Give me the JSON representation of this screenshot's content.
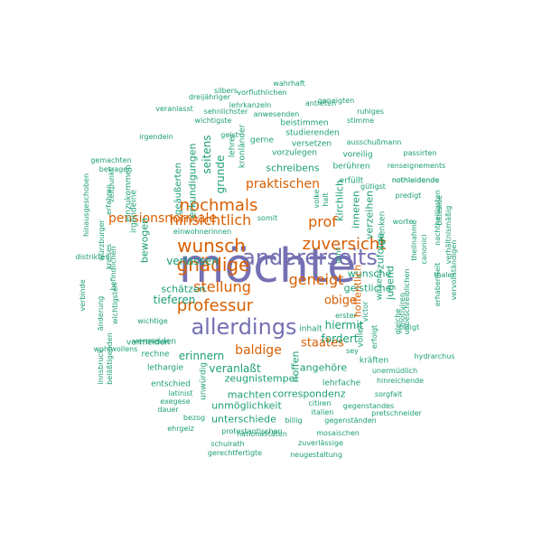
{
  "palette": {
    "high": "#7570b3",
    "mid": "#d95f02",
    "low": "#1b9e77"
  },
  "words": [
    {
      "text": "möchte",
      "tier": "high"
    },
    {
      "text": "allerdings",
      "tier": "high"
    },
    {
      "text": "andererseits",
      "tier": "high"
    },
    {
      "text": "wunsch",
      "tier": "mid"
    },
    {
      "text": "gnädige",
      "tier": "mid"
    },
    {
      "text": "nochmals",
      "tier": "mid"
    },
    {
      "text": "zuversicht",
      "tier": "mid"
    },
    {
      "text": "geneigt",
      "tier": "mid"
    },
    {
      "text": "professur",
      "tier": "mid"
    },
    {
      "text": "stellung",
      "tier": "mid"
    },
    {
      "text": "hinsichtlich",
      "tier": "mid"
    },
    {
      "text": "prof",
      "tier": "mid"
    },
    {
      "text": "praktischen",
      "tier": "mid"
    },
    {
      "text": "pensionsnormale",
      "tier": "mid"
    },
    {
      "text": "baldige",
      "tier": "mid"
    },
    {
      "text": "staates",
      "tier": "mid"
    },
    {
      "text": "obige",
      "tier": "mid"
    },
    {
      "text": "wahrhaft",
      "tier": "low"
    },
    {
      "text": "veranlasst",
      "tier": "low"
    },
    {
      "text": "silbers",
      "tier": "low"
    },
    {
      "text": "vorfluthlichen",
      "tier": "low"
    },
    {
      "text": "antreten",
      "tier": "low"
    },
    {
      "text": "dreijähriger",
      "tier": "low"
    },
    {
      "text": "geneigten",
      "tier": "low"
    },
    {
      "text": "lehrkanzeln",
      "tier": "low"
    },
    {
      "text": "sehnlichster",
      "tier": "low"
    },
    {
      "text": "anwesenden",
      "tier": "low"
    },
    {
      "text": "wichtigste",
      "tier": "low"
    },
    {
      "text": "ruhiges",
      "tier": "low"
    },
    {
      "text": "beistimmen",
      "tier": "low"
    },
    {
      "text": "irgendein",
      "tier": "low"
    },
    {
      "text": "geist",
      "tier": "low"
    },
    {
      "text": "studierenden",
      "tier": "low"
    },
    {
      "text": "gerne",
      "tier": "low"
    },
    {
      "text": "versetzen",
      "tier": "low"
    },
    {
      "text": "ausschußmann",
      "tier": "low"
    },
    {
      "text": "vorzulegen",
      "tier": "low"
    },
    {
      "text": "voreilig",
      "tier": "low"
    },
    {
      "text": "passirten",
      "tier": "low"
    },
    {
      "text": "gemachten",
      "tier": "low"
    },
    {
      "text": "betragen",
      "tier": "low"
    },
    {
      "text": "berühren",
      "tier": "low"
    },
    {
      "text": "renseignements",
      "tier": "low"
    },
    {
      "text": "schreibens",
      "tier": "low"
    },
    {
      "text": "nothleidende",
      "tier": "low"
    },
    {
      "text": "erfüllt",
      "tier": "low"
    },
    {
      "text": "gütigst",
      "tier": "low"
    },
    {
      "text": "predigt",
      "tier": "low"
    },
    {
      "text": "einwohnerinnen",
      "tier": "low"
    },
    {
      "text": "somit",
      "tier": "low"
    },
    {
      "text": "worte",
      "tier": "low"
    },
    {
      "text": "wunsche",
      "tier": "low"
    },
    {
      "text": "thaler",
      "tier": "low"
    },
    {
      "text": "verlassen",
      "tier": "low"
    },
    {
      "text": "distriktes",
      "tier": "low"
    },
    {
      "text": "geistliche",
      "tier": "low"
    },
    {
      "text": "schätzen",
      "tier": "low"
    },
    {
      "text": "tieferen",
      "tier": "low"
    },
    {
      "text": "nothleidende",
      "tier": "low"
    },
    {
      "text": "wichtige",
      "tier": "low"
    },
    {
      "text": "hiermit",
      "tier": "low"
    },
    {
      "text": "fordert",
      "tier": "low"
    },
    {
      "text": "inhalt",
      "tier": "low"
    },
    {
      "text": "erster",
      "tier": "low"
    },
    {
      "text": "billigt",
      "tier": "low"
    },
    {
      "text": "wohlwollens",
      "tier": "low"
    },
    {
      "text": "vermeiden",
      "tier": "low"
    },
    {
      "text": "sey",
      "tier": "low"
    },
    {
      "text": "rechne",
      "tier": "low"
    },
    {
      "text": "erinnern",
      "tier": "low"
    },
    {
      "text": "hydrarchus",
      "tier": "low"
    },
    {
      "text": "lethargie",
      "tier": "low"
    },
    {
      "text": "veranlaßt",
      "tier": "low"
    },
    {
      "text": "angehöre",
      "tier": "low"
    },
    {
      "text": "kräften",
      "tier": "low"
    },
    {
      "text": "unermüdlich",
      "tier": "low"
    },
    {
      "text": "zeugnistempel",
      "tier": "low"
    },
    {
      "text": "lehrfache",
      "tier": "low"
    },
    {
      "text": "hinreichende",
      "tier": "low"
    },
    {
      "text": "entschied",
      "tier": "low"
    },
    {
      "text": "latinist",
      "tier": "low"
    },
    {
      "text": "machten",
      "tier": "low"
    },
    {
      "text": "correspondenz",
      "tier": "low"
    },
    {
      "text": "sorgfalt",
      "tier": "low"
    },
    {
      "text": "exegese",
      "tier": "low"
    },
    {
      "text": "unmöglichkeit",
      "tier": "low"
    },
    {
      "text": "citiren",
      "tier": "low"
    },
    {
      "text": "gegenstandes",
      "tier": "low"
    },
    {
      "text": "dauer",
      "tier": "low"
    },
    {
      "text": "italien",
      "tier": "low"
    },
    {
      "text": "pretschneider",
      "tier": "low"
    },
    {
      "text": "bezog",
      "tier": "low"
    },
    {
      "text": "unterschiede",
      "tier": "low"
    },
    {
      "text": "billig",
      "tier": "low"
    },
    {
      "text": "gegenständen",
      "tier": "low"
    },
    {
      "text": "ehrgeiz",
      "tier": "low"
    },
    {
      "text": "nationalitäten",
      "tier": "low"
    },
    {
      "text": "mosaischen",
      "tier": "low"
    },
    {
      "text": "protestantischen",
      "tier": "low"
    },
    {
      "text": "zuverlässige",
      "tier": "low"
    },
    {
      "text": "schulrath",
      "tier": "low"
    },
    {
      "text": "gerechtfertigte",
      "tier": "low"
    },
    {
      "text": "neugestaltung",
      "tier": "low"
    },
    {
      "text": "vermeiden",
      "tier": "low"
    },
    {
      "text": "hoffentlich",
      "tier": "mid",
      "vertical": true
    },
    {
      "text": "kirchlich",
      "tier": "low",
      "vertical": true
    },
    {
      "text": "inneren",
      "tier": "low",
      "vertical": true
    },
    {
      "text": "verzeihen",
      "tier": "low",
      "vertical": true
    },
    {
      "text": "jugend",
      "tier": "low",
      "vertical": true
    },
    {
      "text": "zufolge",
      "tier": "low",
      "vertical": true
    },
    {
      "text": "wirkens",
      "tier": "low",
      "vertical": true
    },
    {
      "text": "schenken",
      "tier": "low",
      "vertical": true
    },
    {
      "text": "hoffen",
      "tier": "low",
      "vertical": true
    },
    {
      "text": "halt",
      "tier": "low",
      "vertical": true
    },
    {
      "text": "vollen",
      "tier": "low",
      "vertical": true
    },
    {
      "text": "unwürdig",
      "tier": "low",
      "vertical": true
    },
    {
      "text": "grunde",
      "tier": "low",
      "vertical": true
    },
    {
      "text": "seitens",
      "tier": "low",
      "vertical": true
    },
    {
      "text": "erkundigungen",
      "tier": "low",
      "vertical": true
    },
    {
      "text": "geäußerten",
      "tier": "low",
      "vertical": true
    },
    {
      "text": "einzukommen",
      "tier": "low",
      "vertical": true
    },
    {
      "text": "irgendeine",
      "tier": "low",
      "vertical": true
    },
    {
      "text": "bewogen",
      "tier": "low",
      "vertical": true
    },
    {
      "text": "kronländer",
      "tier": "low",
      "vertical": true
    },
    {
      "text": "lehrer",
      "tier": "low",
      "vertical": true
    },
    {
      "text": "erfahren",
      "tier": "low",
      "vertical": true
    },
    {
      "text": "zeitpunkt",
      "tier": "low",
      "vertical": true
    },
    {
      "text": "würzburger",
      "tier": "low",
      "vertical": true
    },
    {
      "text": "kreises",
      "tier": "low",
      "vertical": true
    },
    {
      "text": "befindlichen",
      "tier": "low",
      "vertical": true
    },
    {
      "text": "wichtigsten",
      "tier": "low",
      "vertical": true
    },
    {
      "text": "änderung",
      "tier": "low",
      "vertical": true
    },
    {
      "text": "beläßtigenden",
      "tier": "low",
      "vertical": true
    },
    {
      "text": "innsbruck",
      "tier": "low",
      "vertical": true
    },
    {
      "text": "hinausgeschoben",
      "tier": "low",
      "vertical": true
    },
    {
      "text": "verbinde",
      "tier": "low",
      "vertical": true
    },
    {
      "text": "victor",
      "tier": "low",
      "vertical": true
    },
    {
      "text": "erfolgt",
      "tier": "low",
      "vertical": true
    },
    {
      "text": "gleiche",
      "tier": "low",
      "vertical": true
    },
    {
      "text": "motiviren",
      "tier": "low",
      "vertical": true
    },
    {
      "text": "unbeschreiblichen",
      "tier": "low",
      "vertical": true
    },
    {
      "text": "erhabenheit",
      "tier": "low",
      "vertical": true
    },
    {
      "text": "theilnahme",
      "tier": "low",
      "vertical": true
    },
    {
      "text": "canonici",
      "tier": "low",
      "vertical": true
    },
    {
      "text": "nachtheiligsten",
      "tier": "low",
      "vertical": true
    },
    {
      "text": "verhältnismäßig",
      "tier": "low",
      "vertical": true
    },
    {
      "text": "vervollständigen",
      "tier": "low",
      "vertical": true
    },
    {
      "text": "bittende",
      "tier": "low",
      "vertical": true
    },
    {
      "text": "volke",
      "tier": "low",
      "vertical": true
    },
    {
      "text": "acht",
      "tier": "low",
      "vertical": true
    },
    {
      "text": "stimme",
      "tier": "low"
    }
  ]
}
